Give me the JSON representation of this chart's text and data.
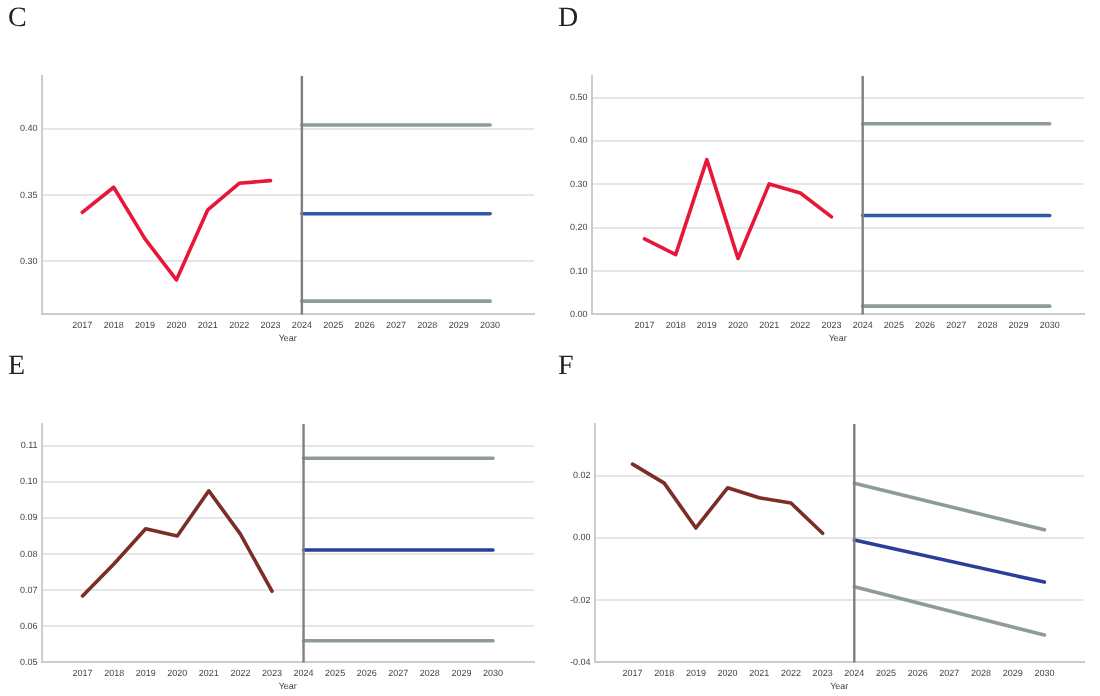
{
  "chart_data": [
    {
      "type": "line",
      "title": "C",
      "xlabel": "Year",
      "xlim": [
        2015.7,
        2031.4
      ],
      "xticks": [
        2017,
        2018,
        2019,
        2020,
        2021,
        2022,
        2023,
        2024,
        2025,
        2026,
        2027,
        2028,
        2029,
        2030
      ],
      "ylim": [
        0.26,
        0.44
      ],
      "yticks": [
        {
          "value": 0.3,
          "label": "0.30"
        },
        {
          "value": 0.35,
          "label": "0.35"
        },
        {
          "value": 0.4,
          "label": "0.40"
        }
      ],
      "grid": "y",
      "legend": false,
      "ref_lines": [
        {
          "axis": "x",
          "value": 2024,
          "color": "#7f7f7f"
        }
      ],
      "series": [
        {
          "color": "#e8173a",
          "x": [
            2017,
            2018,
            2019,
            2020,
            2021,
            2022,
            2023
          ],
          "values": [
            0.337,
            0.356,
            0.317,
            0.286,
            0.339,
            0.359,
            0.361
          ]
        },
        {
          "color": "#2b5aa6",
          "x": [
            2024,
            2030
          ],
          "values": [
            0.336,
            0.336
          ]
        },
        {
          "color": "#8f9a9a",
          "x": [
            2024,
            2030
          ],
          "values": [
            0.403,
            0.403
          ]
        },
        {
          "color": "#8f9a9a",
          "x": [
            2024,
            2030
          ],
          "values": [
            0.27,
            0.27
          ]
        }
      ]
    },
    {
      "type": "line",
      "title": "D",
      "xlabel": "Year",
      "xlim": [
        2015.3,
        2031.1
      ],
      "xticks": [
        2017,
        2018,
        2019,
        2020,
        2021,
        2022,
        2023,
        2024,
        2025,
        2026,
        2027,
        2028,
        2029,
        2030
      ],
      "ylim": [
        0,
        0.55
      ],
      "yticks": [
        {
          "value": 0,
          "label": "0.00"
        },
        {
          "value": 0.1,
          "label": "0.10"
        },
        {
          "value": 0.2,
          "label": "0.20"
        },
        {
          "value": 0.3,
          "label": "0.30"
        },
        {
          "value": 0.4,
          "label": "0.40"
        },
        {
          "value": 0.5,
          "label": "0.50"
        }
      ],
      "grid": "y",
      "legend": false,
      "ref_lines": [
        {
          "axis": "x",
          "value": 2024,
          "color": "#7f7f7f"
        }
      ],
      "series": [
        {
          "color": "#e8173a",
          "x": [
            2017,
            2018,
            2019,
            2020,
            2021,
            2022,
            2023
          ],
          "values": [
            0.174,
            0.138,
            0.357,
            0.129,
            0.301,
            0.28,
            0.225
          ]
        },
        {
          "color": "#2b5aa6",
          "x": [
            2024,
            2030
          ],
          "values": [
            0.228,
            0.228
          ]
        },
        {
          "color": "#8f9a9a",
          "x": [
            2024,
            2030
          ],
          "values": [
            0.44,
            0.44
          ]
        },
        {
          "color": "#8f9a9a",
          "x": [
            2024,
            2030
          ],
          "values": [
            0.019,
            0.019
          ]
        }
      ]
    },
    {
      "type": "line",
      "title": "E",
      "xlabel": "Year",
      "xlim": [
        2015.7,
        2031.3
      ],
      "xticks": [
        2017,
        2018,
        2019,
        2020,
        2021,
        2022,
        2023,
        2024,
        2025,
        2026,
        2027,
        2028,
        2029,
        2030
      ],
      "ylim": [
        0.05,
        0.116
      ],
      "yticks": [
        {
          "value": 0.05,
          "label": "0.05"
        },
        {
          "value": 0.06,
          "label": "0.06"
        },
        {
          "value": 0.07,
          "label": "0.07"
        },
        {
          "value": 0.08,
          "label": "0.08"
        },
        {
          "value": 0.09,
          "label": "0.09"
        },
        {
          "value": 0.1,
          "label": "0.10"
        },
        {
          "value": 0.11,
          "label": "0.11"
        }
      ],
      "grid": "y",
      "legend": false,
      "ref_lines": [
        {
          "axis": "x",
          "value": 2024,
          "color": "#7f7f7f"
        }
      ],
      "series": [
        {
          "color": "#7b2d26",
          "x": [
            2017,
            2018,
            2019,
            2020,
            2021,
            2022,
            2023
          ],
          "values": [
            0.0684,
            0.0773,
            0.087,
            0.085,
            0.0975,
            0.0855,
            0.0697
          ]
        },
        {
          "color": "#2b3f9a",
          "x": [
            2024,
            2030
          ],
          "values": [
            0.0811,
            0.0811
          ]
        },
        {
          "color": "#8f9a9a",
          "x": [
            2024,
            2030
          ],
          "values": [
            0.1065,
            0.1065
          ]
        },
        {
          "color": "#8f9a9a",
          "x": [
            2024,
            2030
          ],
          "values": [
            0.056,
            0.056
          ]
        }
      ]
    },
    {
      "type": "line",
      "title": "F",
      "xlabel": "Year",
      "xlim": [
        2015.8,
        2031.25
      ],
      "xticks": [
        2017,
        2018,
        2019,
        2020,
        2021,
        2022,
        2023,
        2024,
        2025,
        2026,
        2027,
        2028,
        2029,
        2030
      ],
      "ylim": [
        -0.04,
        0.0366
      ],
      "yticks": [
        {
          "value": -0.04,
          "label": "-0.04"
        },
        {
          "value": -0.02,
          "label": "-0.02"
        },
        {
          "value": 0,
          "label": "0.00"
        },
        {
          "value": 0.02,
          "label": "0.02"
        }
      ],
      "grid": "y",
      "legend": false,
      "ref_lines": [
        {
          "axis": "x",
          "value": 2024,
          "color": "#7f7f7f"
        }
      ],
      "series": [
        {
          "color": "#7b2d26",
          "x": [
            2017,
            2018,
            2019,
            2020,
            2021,
            2022,
            2023
          ],
          "values": [
            0.0237,
            0.0176,
            0.0032,
            0.0161,
            0.0129,
            0.0112,
            0.0015
          ]
        },
        {
          "color": "#2b3f9a",
          "x": [
            2024,
            2030
          ],
          "values": [
            -0.0007,
            -0.0142
          ]
        },
        {
          "color": "#8f9a9a",
          "x": [
            2024,
            2030
          ],
          "values": [
            0.0176,
            0.0026
          ]
        },
        {
          "color": "#8f9a9a",
          "x": [
            2024,
            2030
          ],
          "values": [
            -0.0157,
            -0.0312
          ]
        }
      ]
    }
  ]
}
